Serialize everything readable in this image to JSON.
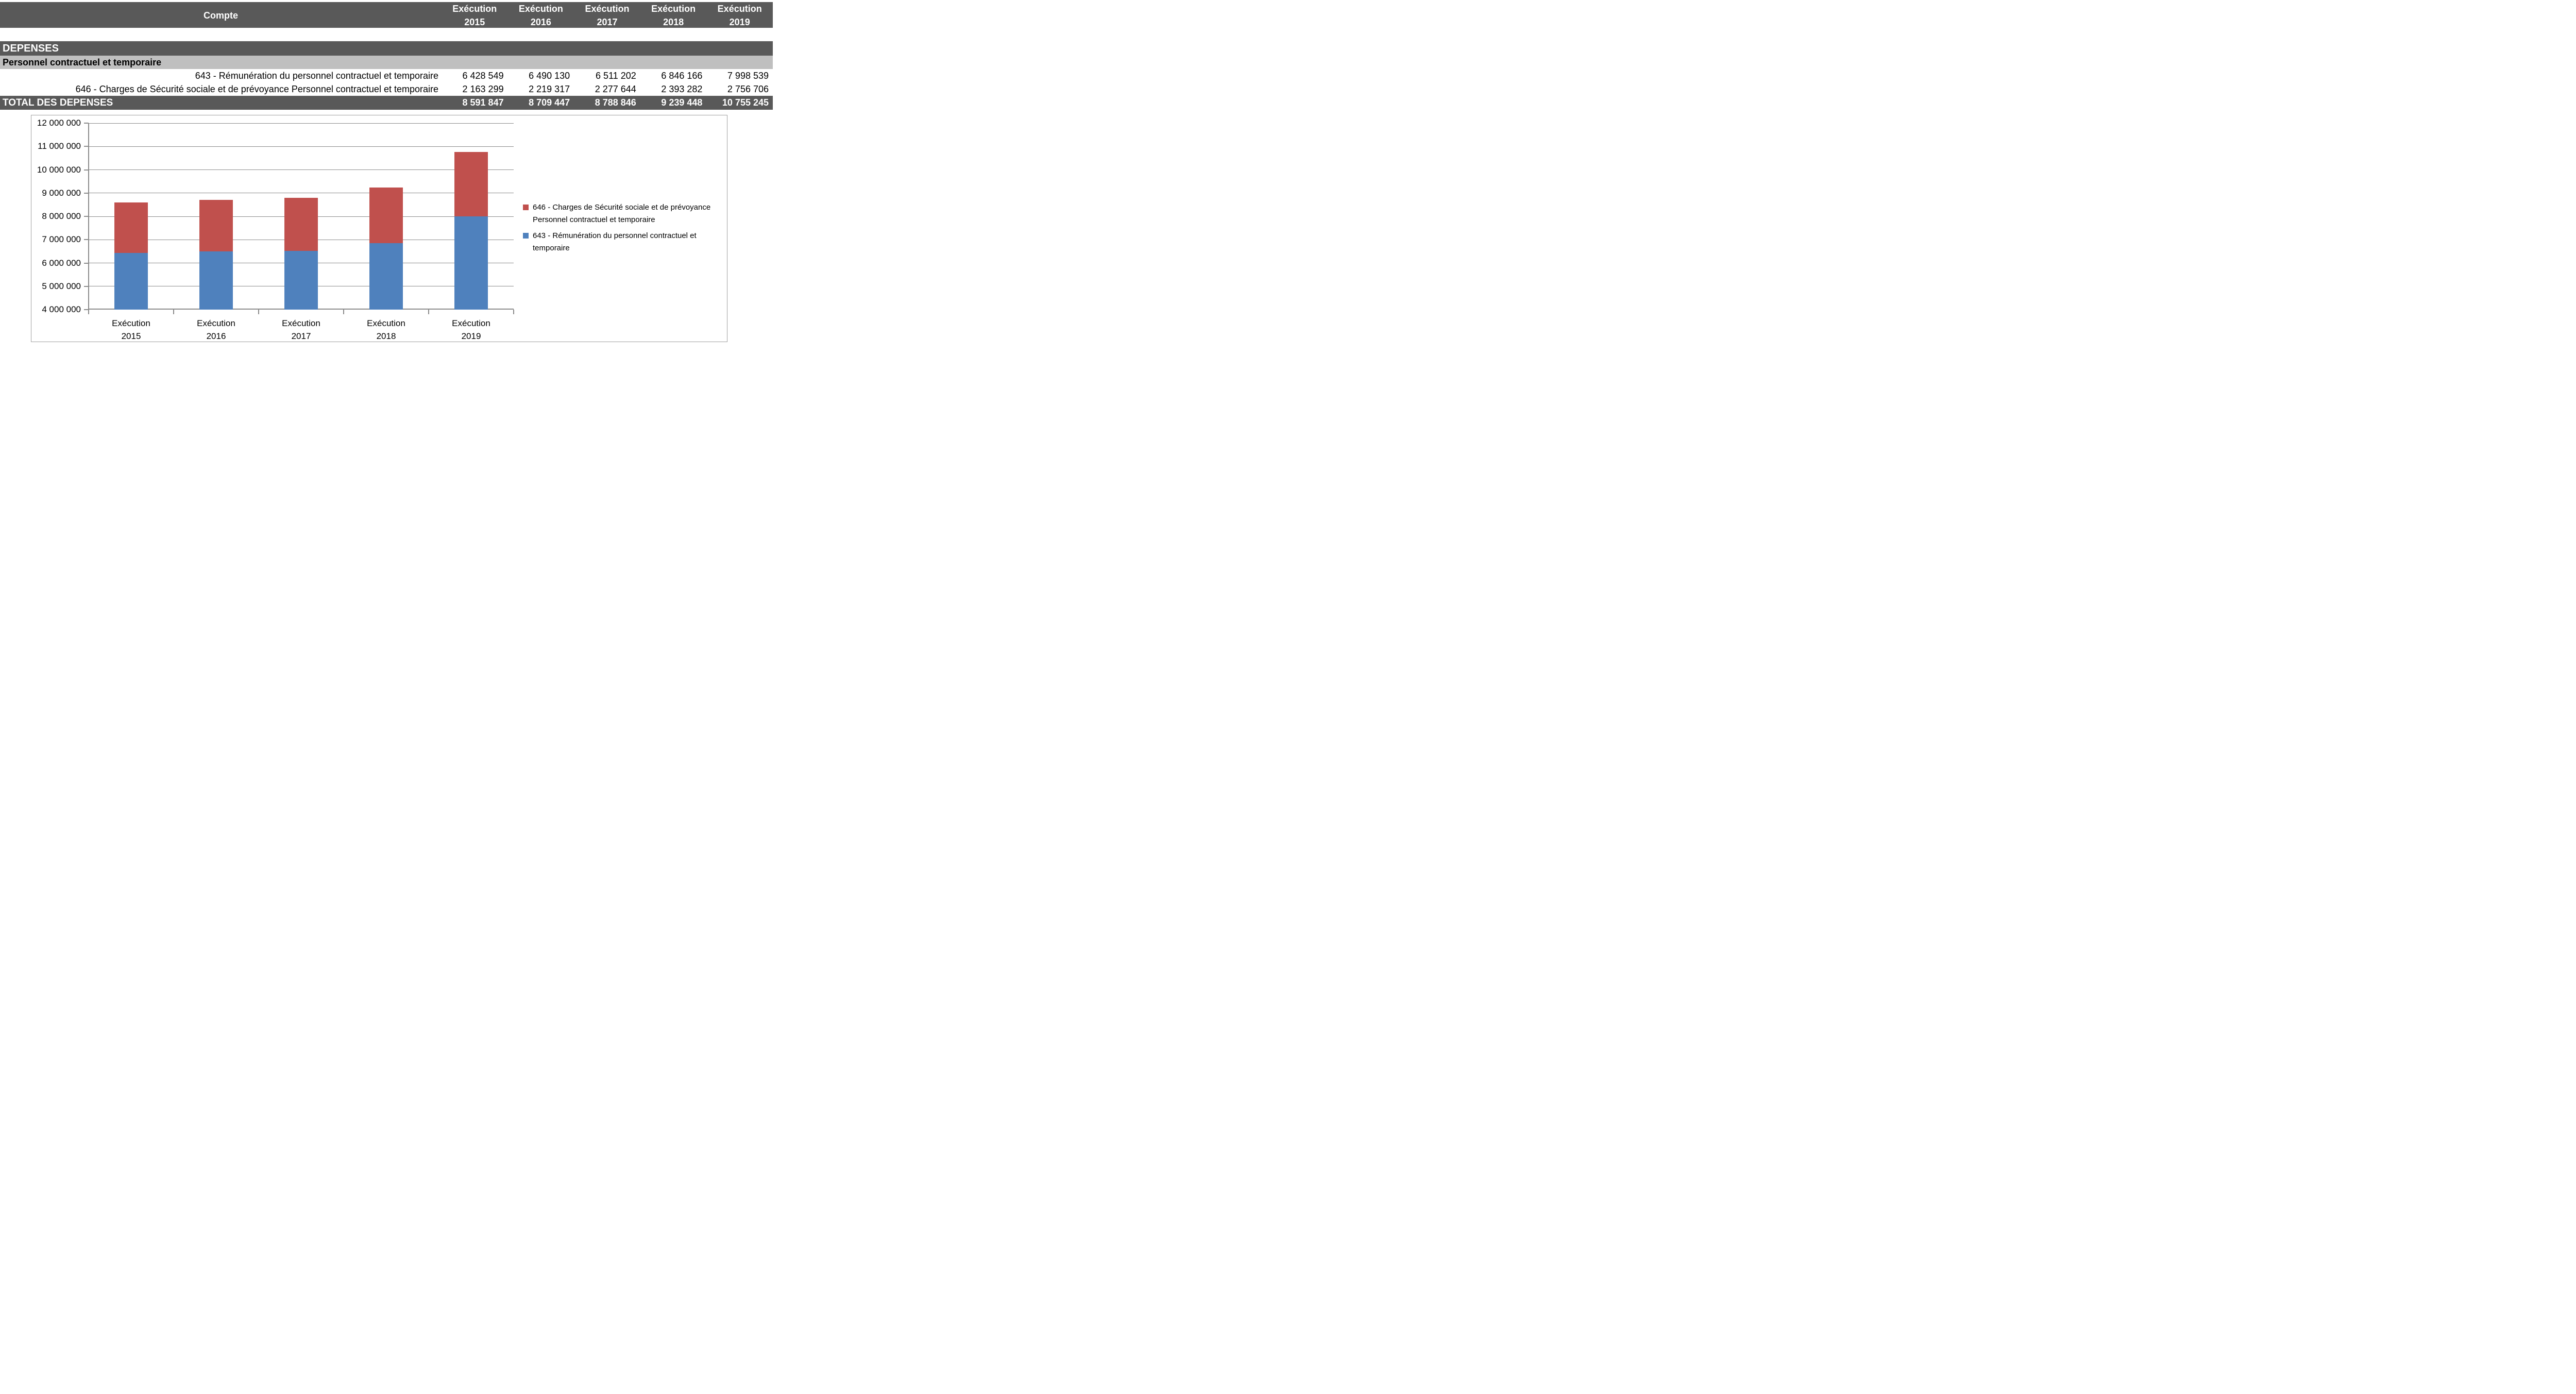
{
  "colors": {
    "header_bg": "#595959",
    "subheader_bg": "#BFBFBF",
    "grid_gray": "#8C8C8C",
    "chart_border": "#A0A0A0",
    "series_blue": "#4F81BD",
    "series_red": "#C0504D"
  },
  "table": {
    "header": {
      "account_col": "Compte",
      "year_cols": [
        "Exécution\n2015",
        "Exécution\n2016",
        "Exécution\n2017",
        "Exécution\n2018",
        "Exécution\n2019"
      ]
    },
    "section_title": "DEPENSES",
    "group_title": "Personnel contractuel et temporaire",
    "rows": [
      {
        "label": "643 - Rémunération du personnel contractuel et temporaire",
        "values": [
          "6 428 549",
          "6 490 130",
          "6 511 202",
          "6 846 166",
          "7 998 539"
        ]
      },
      {
        "label": "646 - Charges de Sécurité sociale et de prévoyance Personnel contractuel et temporaire",
        "values": [
          "2 163 299",
          "2 219 317",
          "2 277 644",
          "2 393 282",
          "2 756 706"
        ]
      }
    ],
    "total": {
      "label": "TOTAL DES DEPENSES",
      "values": [
        "8 591 847",
        "8 709 447",
        "8 788 846",
        "9 239 448",
        "10 755 245"
      ]
    }
  },
  "chart_data": {
    "type": "bar",
    "stacked": true,
    "categories": [
      "Exécution\n2015",
      "Exécution\n2016",
      "Exécution\n2017",
      "Exécution\n2018",
      "Exécution\n2019"
    ],
    "series": [
      {
        "name": "643 - Rémunération du personnel contractuel et temporaire",
        "color": "#4F81BD",
        "values": [
          6428549,
          6490130,
          6511202,
          6846166,
          7998539
        ]
      },
      {
        "name": "646 - Charges de Sécurité sociale et de prévoyance Personnel contractuel et temporaire",
        "color": "#C0504D",
        "values": [
          2163299,
          2219317,
          2277644,
          2393282,
          2756706
        ]
      }
    ],
    "stack_totals": [
      8591847,
      8709447,
      8788846,
      9239448,
      10755245
    ],
    "ylim": [
      4000000,
      12000000
    ],
    "ytick_step": 1000000,
    "ytick_labels": [
      "4 000 000",
      "5 000 000",
      "6 000 000",
      "7 000 000",
      "8 000 000",
      "9 000 000",
      "10 000 000",
      "11 000 000",
      "12 000 000"
    ],
    "grid": true,
    "legend_position": "right",
    "legend": [
      {
        "label": "646 - Charges de Sécurité sociale et de prévoyance Personnel contractuel et temporaire",
        "color": "#C0504D"
      },
      {
        "label": "643 - Rémunération du personnel contractuel et temporaire",
        "color": "#4F81BD"
      }
    ]
  }
}
